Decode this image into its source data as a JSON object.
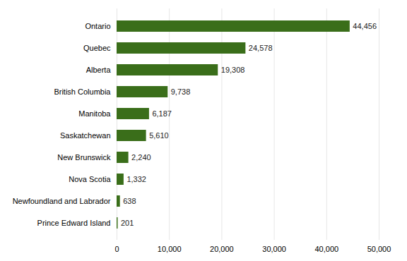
{
  "chart_data": {
    "type": "bar",
    "orientation": "horizontal",
    "categories": [
      "Prince Edward Island",
      "Newfoundland and Labrador",
      "Nova Scotia",
      "New Brunswick",
      "Saskatchewan",
      "Manitoba",
      "British Columbia",
      "Alberta",
      "Quebec",
      "Ontario"
    ],
    "values": [
      201,
      638,
      1332,
      2240,
      5610,
      6187,
      9738,
      19308,
      24578,
      44456
    ],
    "value_labels": [
      "201",
      "638",
      "1,332",
      "2,240",
      "5,610",
      "6,187",
      "9,738",
      "19,308",
      "24,578",
      "44,456"
    ],
    "color": "#3a6e1a",
    "xlim": [
      0,
      50000
    ],
    "xticks": [
      0,
      {
        "value": 10000,
        "label": "10,000"
      },
      {
        "value": 20000,
        "label": "20,000"
      },
      {
        "value": 30000,
        "label": "30,000"
      },
      {
        "value": 40000,
        "label": "40,000"
      },
      {
        "value": 50000,
        "label": "50,000"
      }
    ],
    "grid": true,
    "data_labels": true
  }
}
